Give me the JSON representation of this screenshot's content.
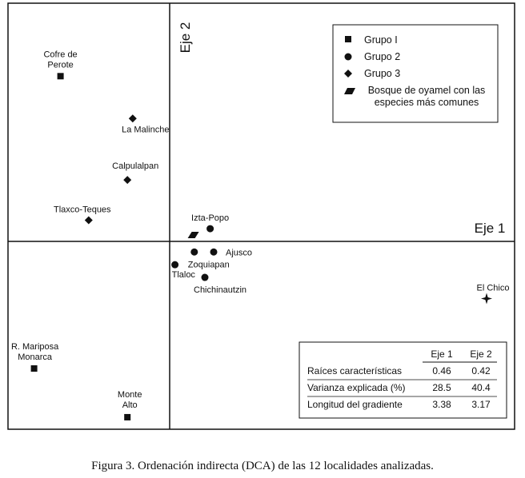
{
  "chart_data": {
    "type": "scatter",
    "axes": {
      "x_label": "Eje 1",
      "y_label": "Eje 2",
      "grid": false
    },
    "legend": {
      "placement": "top-right",
      "entries": [
        {
          "key": "grupo1",
          "label": "Grupo I",
          "marker": "square"
        },
        {
          "key": "grupo2",
          "label": "Grupo 2",
          "marker": "circle"
        },
        {
          "key": "grupo3",
          "label": "Grupo 3",
          "marker": "diamond"
        },
        {
          "key": "bosque",
          "label_lines": [
            "Bosque de oyamel con las",
            "especies más comunes"
          ],
          "marker": "parallelogram"
        }
      ]
    },
    "points": [
      {
        "name_lines": [
          "Cofre de",
          "Perote"
        ],
        "group": "grupo1",
        "x": -0.62,
        "y": 0.78
      },
      {
        "name_lines": [
          "La Malinche"
        ],
        "group": "grupo3",
        "x": -0.21,
        "y": 0.58
      },
      {
        "name_lines": [
          "Calpulalpan"
        ],
        "group": "grupo3",
        "x": -0.24,
        "y": 0.29
      },
      {
        "name_lines": [
          "Tlaxco-Teques"
        ],
        "group": "grupo3",
        "x": -0.46,
        "y": 0.1
      },
      {
        "name_lines": [
          "Izta-Popo"
        ],
        "group": "grupo2",
        "x": 0.23,
        "y": 0.06
      },
      {
        "name_lines": [
          "Ajusco"
        ],
        "group": "grupo2",
        "x": 0.25,
        "y": -0.05
      },
      {
        "name_lines": [
          "Zoquiapan"
        ],
        "group": "grupo2",
        "x": 0.14,
        "y": -0.05
      },
      {
        "name_lines": [
          "Tlaloc"
        ],
        "group": "grupo2",
        "x": 0.03,
        "y": -0.11
      },
      {
        "name_lines": [
          "Chichinautzin"
        ],
        "group": "grupo2",
        "x": 0.2,
        "y": -0.17
      },
      {
        "name_lines": [
          "El Chico"
        ],
        "group": "other",
        "marker": "star4",
        "x": 1.8,
        "y": -0.27
      },
      {
        "name_lines": [
          "R. Mariposa",
          "Monarca"
        ],
        "group": "grupo1",
        "x": -0.77,
        "y": -0.6
      },
      {
        "name_lines": [
          "Monte",
          "Alto"
        ],
        "group": "grupo1",
        "x": -0.24,
        "y": -0.83
      },
      {
        "name_lines": [],
        "group": "bosque",
        "x": 0.13,
        "y": 0.03
      }
    ],
    "stats_table": {
      "columns": [
        "",
        "Eje 1",
        "Eje 2"
      ],
      "rows": [
        {
          "label": "Raíces características",
          "eje1": "0.46",
          "eje2": "0.42"
        },
        {
          "label": "Varianza explicada (%)",
          "eje1": "28.5",
          "eje2": "40.4"
        },
        {
          "label": "Longitud del gradiente",
          "eje1": "3.38",
          "eje2": "3.17"
        }
      ]
    }
  },
  "caption": "Figura 3. Ordenación indirecta (DCA) de las 12 localidades analizadas.",
  "colors": {
    "ink": "#111111",
    "background": "#ffffff"
  }
}
